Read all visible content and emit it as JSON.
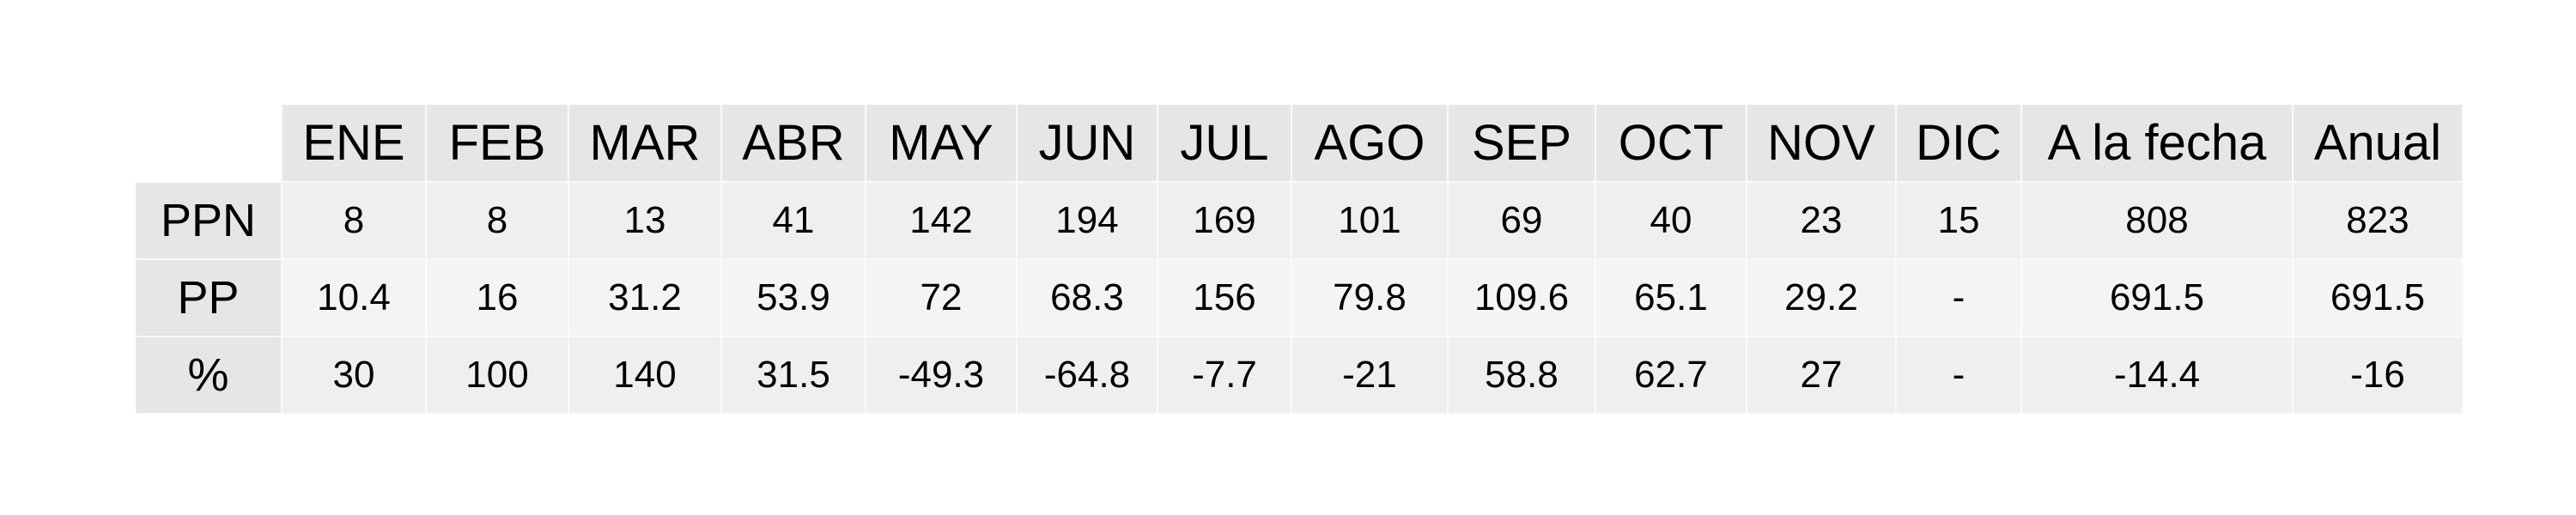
{
  "chart_data": {
    "type": "table",
    "columns": [
      "ENE",
      "FEB",
      "MAR",
      "ABR",
      "MAY",
      "JUN",
      "JUL",
      "AGO",
      "SEP",
      "OCT",
      "NOV",
      "DIC",
      "A la fecha",
      "Anual"
    ],
    "rows": [
      {
        "label": "PPN",
        "values": [
          "8",
          "8",
          "13",
          "41",
          "142",
          "194",
          "169",
          "101",
          "69",
          "40",
          "23",
          "15",
          "808",
          "823"
        ]
      },
      {
        "label": "PP",
        "values": [
          "10.4",
          "16",
          "31.2",
          "53.9",
          "72",
          "68.3",
          "156",
          "79.8",
          "109.6",
          "65.1",
          "29.2",
          "-",
          "691.5",
          "691.5"
        ]
      },
      {
        "label": "%",
        "values": [
          "30",
          "100",
          "140",
          "31.5",
          "-49.3",
          "-64.8",
          "-7.7",
          "-21",
          "58.8",
          "62.7",
          "27",
          "-",
          "-14.4",
          "-16"
        ]
      }
    ]
  }
}
